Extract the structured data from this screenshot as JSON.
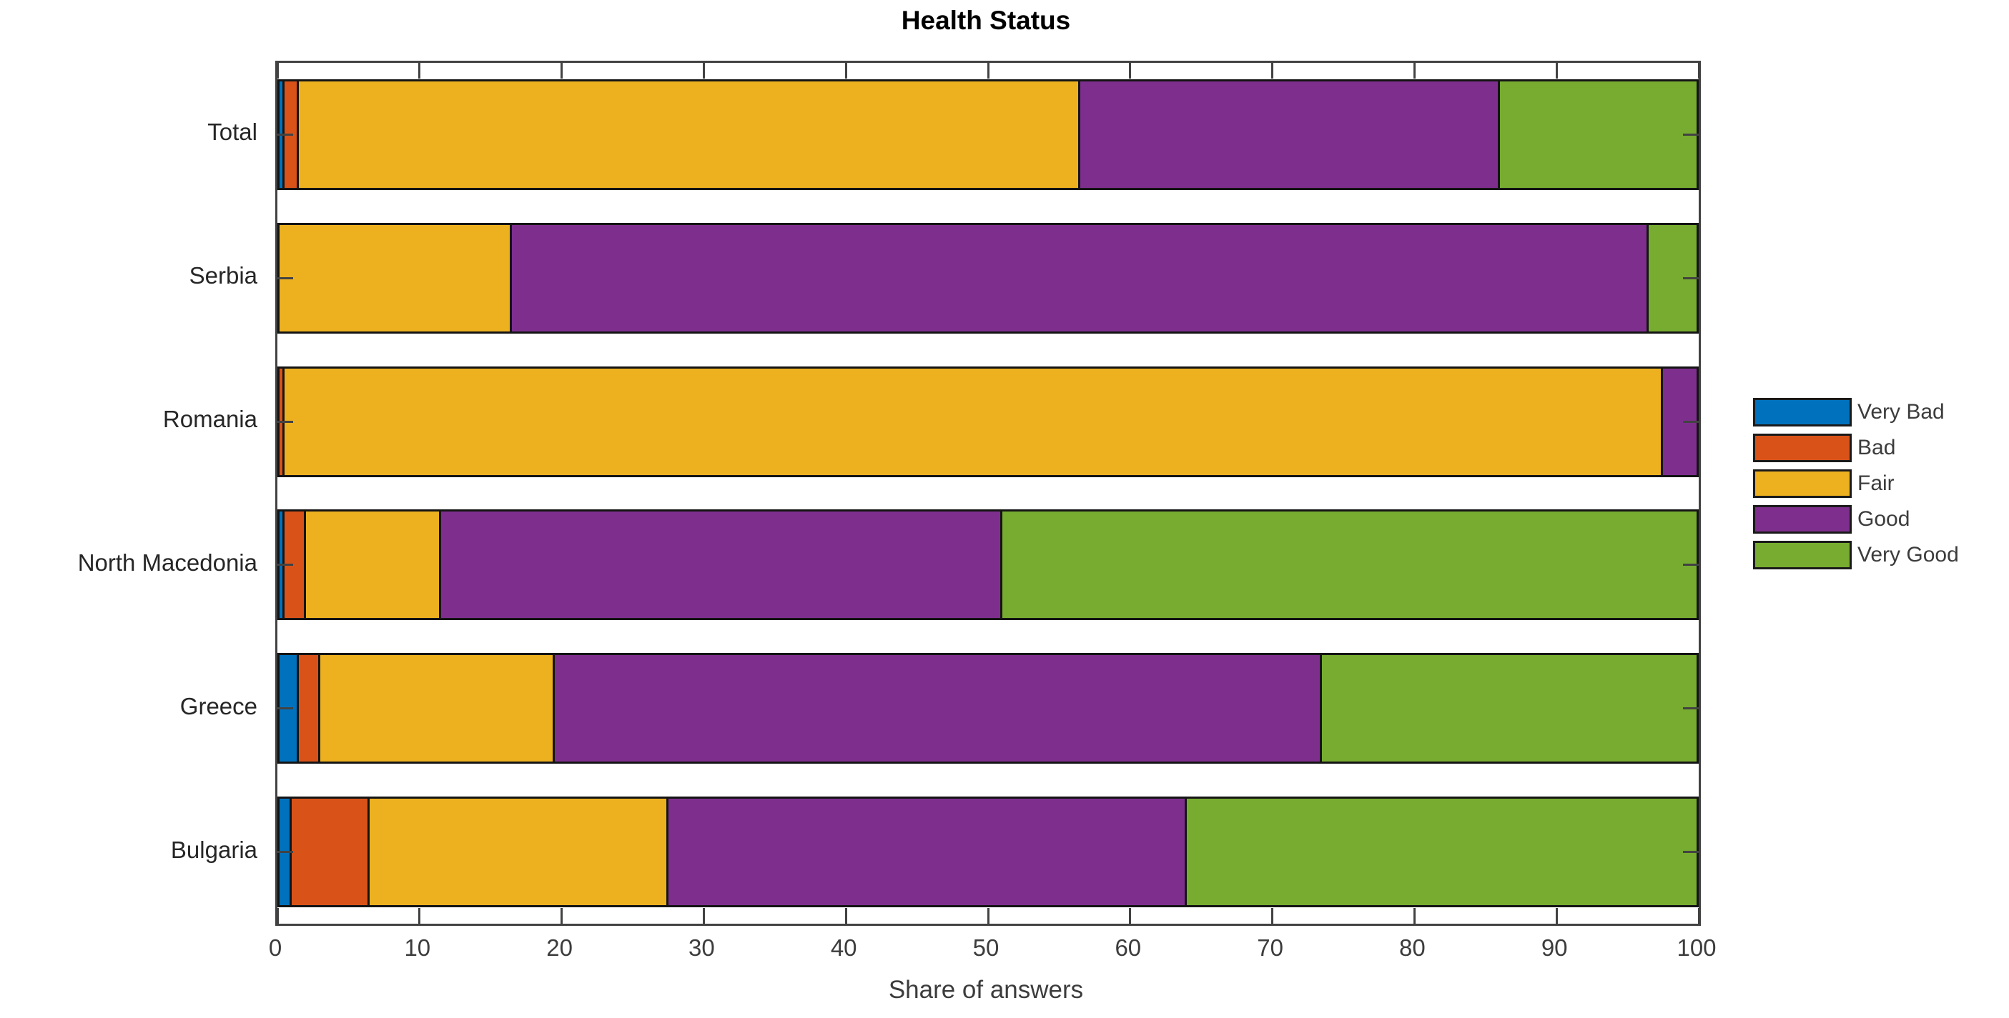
{
  "chart_data": {
    "type": "bar",
    "orientation": "horizontal",
    "stacked": true,
    "title": "Health Status",
    "xlabel": "Share of answers",
    "ylabel": "",
    "xlim": [
      0,
      100
    ],
    "xticks": [
      0,
      10,
      20,
      30,
      40,
      50,
      60,
      70,
      80,
      90,
      100
    ],
    "grid": false,
    "legend_position": "right-outside",
    "categories": [
      "Total",
      "Serbia",
      "Romania",
      "North Macedonia",
      "Greece",
      "Bulgaria"
    ],
    "series": [
      {
        "name": "Very Bad",
        "color": "#0072BD",
        "values": [
          0.5,
          0,
          0,
          0.5,
          1.5,
          1
        ]
      },
      {
        "name": "Bad",
        "color": "#D95319",
        "values": [
          1,
          0,
          0.5,
          1.5,
          1.5,
          5.5
        ]
      },
      {
        "name": "Fair",
        "color": "#EDB120",
        "values": [
          55,
          16.5,
          97,
          9.5,
          16.5,
          21
        ]
      },
      {
        "name": "Good",
        "color": "#7E2F8E",
        "values": [
          29.5,
          80,
          2.5,
          39.5,
          54,
          36.5
        ]
      },
      {
        "name": "Very Good",
        "color": "#77AC30",
        "values": [
          14,
          3.5,
          0,
          49,
          26.5,
          36
        ]
      }
    ],
    "colors": {
      "axis": "#424242",
      "bar_border": "#141414",
      "text": "#3c3c3c"
    }
  }
}
